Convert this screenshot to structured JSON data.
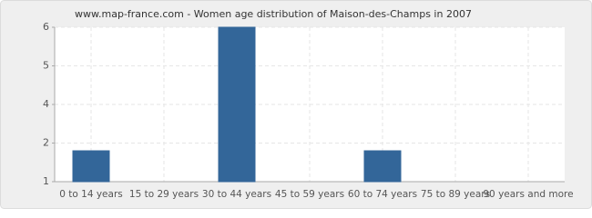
{
  "chart_data": {
    "type": "bar",
    "title": "www.map-france.com - Women age distribution of Maison-des-Champs in 2007",
    "categories": [
      "0 to 14 years",
      "15 to 29 years",
      "30 to 44 years",
      "45 to 59 years",
      "60 to 74 years",
      "75 to 89 years",
      "90 years and more"
    ],
    "values": [
      2,
      1,
      6,
      1,
      2,
      1,
      1
    ],
    "color": "#336699",
    "ylim": [
      1,
      6
    ],
    "yticks": [
      1,
      {
        "value": 2.25,
        "label": "2"
      },
      {
        "value": 3.5,
        "label": "4"
      },
      {
        "value": 4.75,
        "label": "5"
      },
      6
    ],
    "grid": true
  }
}
